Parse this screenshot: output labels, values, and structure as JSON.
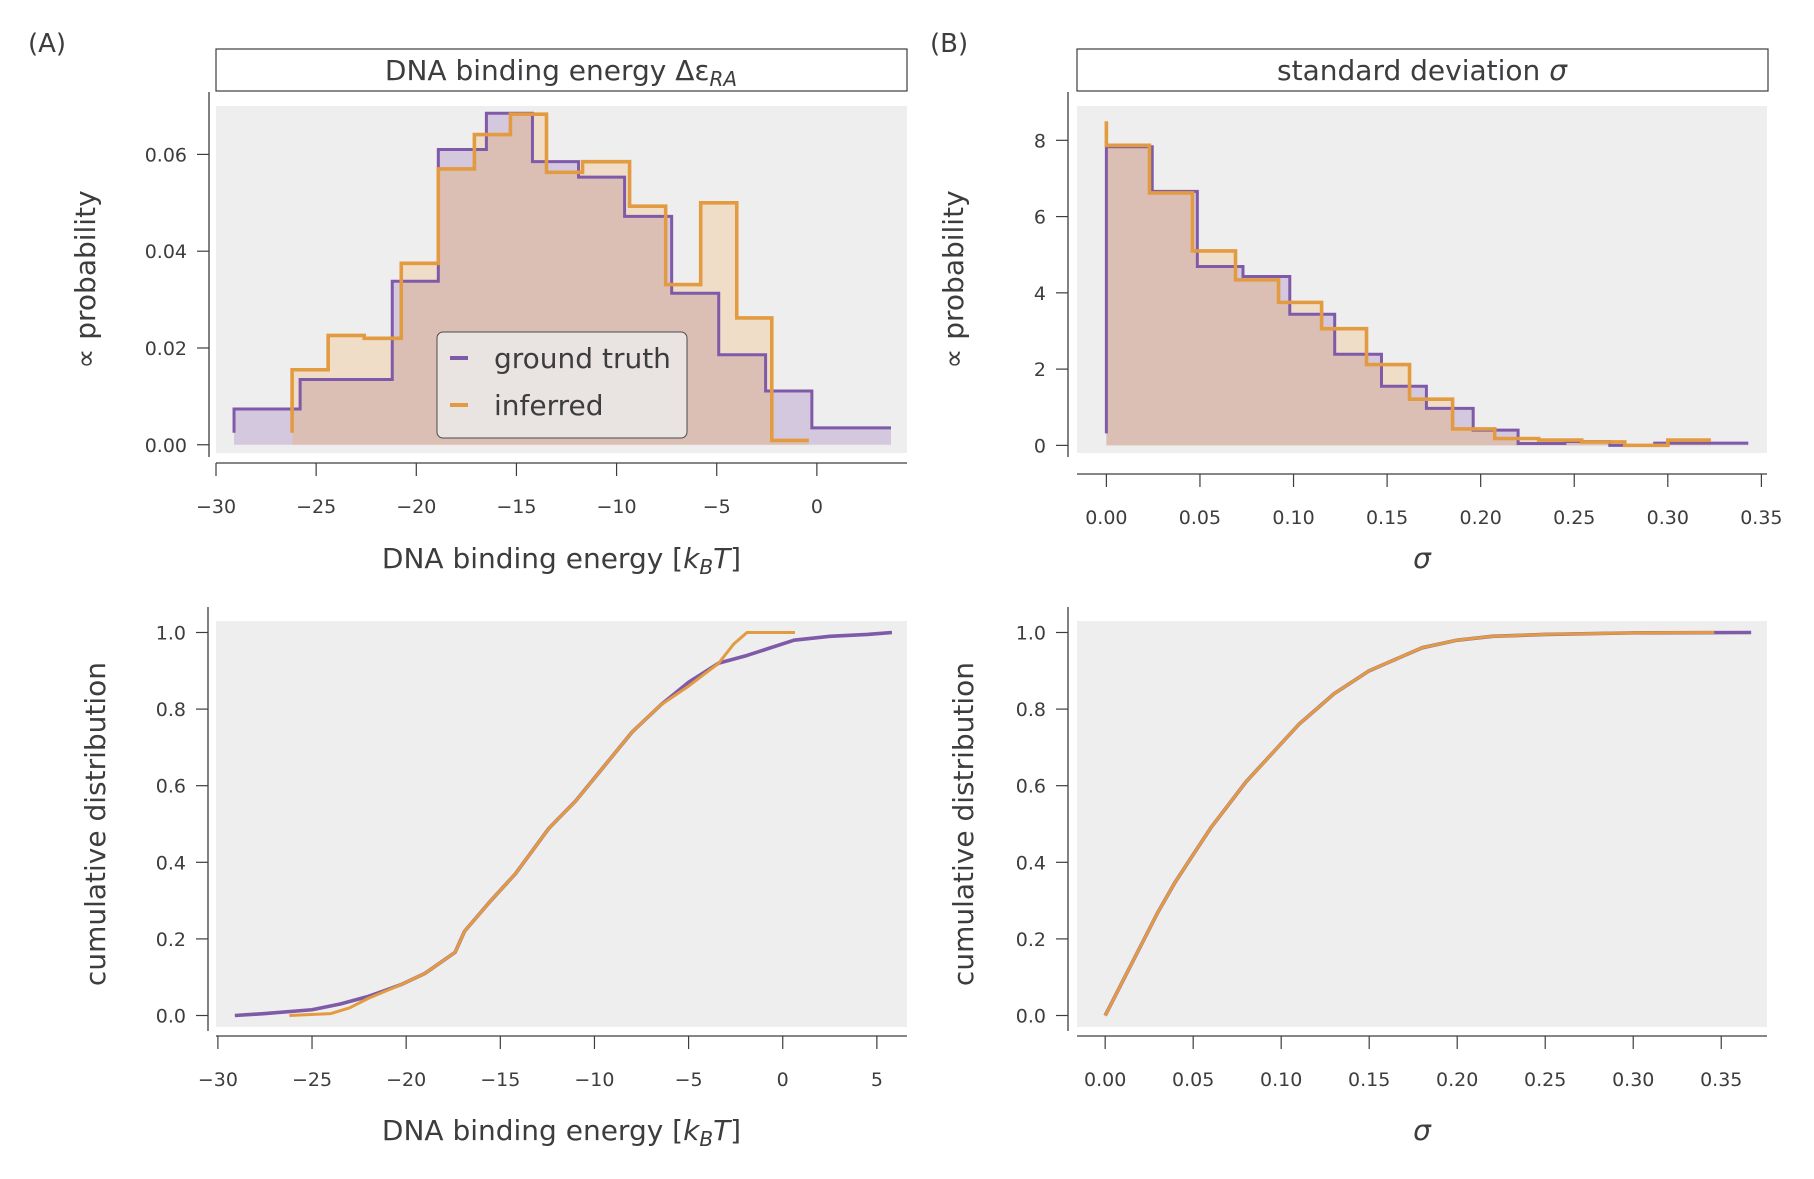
{
  "panels": {
    "A": {
      "label": "(A)",
      "title_main": "DNA binding energy Δε",
      "title_sub": "RA"
    },
    "B": {
      "label": "(B)",
      "title_main": "standard deviation ",
      "title_italic": "σ"
    }
  },
  "legend": {
    "entries": [
      {
        "label": "ground truth",
        "color": "#7f5aa8"
      },
      {
        "label": "inferred",
        "color": "#e39b42"
      }
    ]
  },
  "colors": {
    "ground_truth": "#7f5aa8",
    "inferred": "#e39b42",
    "ground_truth_fill": "#cfc1dc",
    "inferred_fill": "#efd9c1",
    "overlap_fill": "#dbbfb5",
    "plot_bg": "#eeeeee",
    "axis": "#3d3d3f"
  },
  "chart_data": [
    {
      "id": "hist-energy",
      "type": "histogram",
      "title": "DNA binding energy Δε_RA",
      "xlabel": "DNA binding energy [k_B T]",
      "ylabel": "∝ probability",
      "xlim": [
        -30,
        4.5
      ],
      "ylim": [
        -0.0017,
        0.07
      ],
      "xticks": [
        -30,
        -25,
        -20,
        -15,
        -10,
        -5,
        0
      ],
      "xtick_labels": [
        "−30",
        "−25",
        "−20",
        "−15",
        "−10",
        "−5",
        "0"
      ],
      "yticks": [
        0.0,
        0.02,
        0.04,
        0.06
      ],
      "ytick_labels": [
        "0.00",
        "0.02",
        "0.04",
        "0.06"
      ],
      "legend_position": "lower-center",
      "series": [
        {
          "name": "ground truth",
          "edges": [
            -29.1,
            -25.8,
            -21.2,
            -18.9,
            -16.5,
            -14.2,
            -11.9,
            -9.6,
            -7.25,
            -4.9,
            -2.56,
            -0.25,
            3.7
          ],
          "values": [
            0.0074,
            0.0135,
            0.0338,
            0.061,
            0.0685,
            0.0585,
            0.0553,
            0.0472,
            0.0313,
            0.0186,
            0.0111,
            0.0035
          ]
        },
        {
          "name": "inferred",
          "edges": [
            -26.2,
            -24.4,
            -22.6,
            -20.75,
            -18.9,
            -17.1,
            -15.3,
            -13.5,
            -11.7,
            -9.35,
            -7.55,
            -5.8,
            -4.0,
            -2.25,
            -0.4
          ],
          "values": [
            0.0155,
            0.0226,
            0.022,
            0.0375,
            0.057,
            0.0641,
            0.0683,
            0.0563,
            0.0585,
            0.0493,
            0.0331,
            0.05,
            0.0262,
            0.0009
          ]
        }
      ]
    },
    {
      "id": "hist-sigma",
      "type": "histogram",
      "title": "standard deviation σ",
      "xlabel": "σ",
      "ylabel": "∝ probability",
      "xlim": [
        -0.0157,
        0.353
      ],
      "ylim": [
        -0.2,
        8.9
      ],
      "xticks": [
        0.0,
        0.05,
        0.1,
        0.15,
        0.2,
        0.25,
        0.3,
        0.35
      ],
      "xtick_labels": [
        "0.00",
        "0.05",
        "0.10",
        "0.15",
        "0.20",
        "0.25",
        "0.30",
        "0.35"
      ],
      "yticks": [
        0,
        2,
        4,
        6,
        8
      ],
      "ytick_labels": [
        "0",
        "2",
        "4",
        "6",
        "8"
      ],
      "series": [
        {
          "name": "ground truth",
          "edges": [
            0.0,
            0.0245,
            0.0486,
            0.073,
            0.098,
            0.122,
            0.147,
            0.171,
            0.196,
            0.22,
            0.245,
            0.269,
            0.293,
            0.343
          ],
          "values": [
            7.83,
            6.66,
            4.69,
            4.43,
            3.44,
            2.39,
            1.55,
            0.97,
            0.4,
            0.05,
            0.1,
            0.0,
            0.06
          ]
        },
        {
          "name": "inferred",
          "edges": [
            0.0,
            0.023,
            0.046,
            0.069,
            0.092,
            0.115,
            0.139,
            0.162,
            0.185,
            0.2075,
            0.231,
            0.254,
            0.277,
            0.3,
            0.323
          ],
          "values": [
            7.87,
            6.62,
            5.1,
            4.34,
            3.75,
            3.06,
            2.12,
            1.21,
            0.43,
            0.18,
            0.14,
            0.09,
            0.0,
            0.14
          ],
          "spike": 8.5
        }
      ]
    },
    {
      "id": "cdf-energy",
      "type": "line",
      "xlabel": "DNA binding energy [k_B T]",
      "ylabel": "cumulative distribution",
      "xlim": [
        -30.1,
        6.6
      ],
      "ylim": [
        -0.03,
        1.03
      ],
      "xticks": [
        -30,
        -25,
        -20,
        -15,
        -10,
        -5,
        0,
        5
      ],
      "xtick_labels": [
        "−30",
        "−25",
        "−20",
        "−15",
        "−10",
        "−5",
        "0",
        "5"
      ],
      "yticks": [
        0.0,
        0.2,
        0.4,
        0.6,
        0.8,
        1.0
      ],
      "ytick_labels": [
        "0.0",
        "0.2",
        "0.4",
        "0.6",
        "0.8",
        "1.0"
      ],
      "series": [
        {
          "name": "ground truth",
          "x": [
            -29.1,
            -27.5,
            -25,
            -23.5,
            -22,
            -20.3,
            -19,
            -17.4,
            -16.9,
            -15.5,
            -14.2,
            -12.4,
            -11,
            -9.5,
            -8,
            -6.5,
            -5,
            -3.4,
            -1.9,
            0.6,
            2.5,
            4.5,
            5.8
          ],
          "y": [
            0.0,
            0.005,
            0.015,
            0.03,
            0.05,
            0.08,
            0.11,
            0.165,
            0.22,
            0.3,
            0.37,
            0.49,
            0.56,
            0.65,
            0.74,
            0.81,
            0.87,
            0.92,
            0.94,
            0.98,
            0.99,
            0.995,
            1.0
          ]
        },
        {
          "name": "inferred",
          "x": [
            -26.2,
            -24,
            -23,
            -22,
            -20.3,
            -19,
            -17.4,
            -16.9,
            -15.5,
            -14.2,
            -12.4,
            -11,
            -9.5,
            -8,
            -6.5,
            -5,
            -3.4,
            -2.6,
            -1.9,
            0.65
          ],
          "y": [
            0.0,
            0.005,
            0.02,
            0.045,
            0.08,
            0.11,
            0.165,
            0.22,
            0.3,
            0.37,
            0.49,
            0.56,
            0.65,
            0.74,
            0.81,
            0.86,
            0.92,
            0.97,
            1.0,
            1.0
          ]
        }
      ]
    },
    {
      "id": "cdf-sigma",
      "type": "line",
      "xlabel": "σ",
      "ylabel": "cumulative distribution",
      "xlim": [
        -0.016,
        0.376
      ],
      "ylim": [
        -0.03,
        1.03
      ],
      "xticks": [
        0.0,
        0.05,
        0.1,
        0.15,
        0.2,
        0.25,
        0.3,
        0.35
      ],
      "xtick_labels": [
        "0.00",
        "0.05",
        "0.10",
        "0.15",
        "0.20",
        "0.25",
        "0.30",
        "0.35"
      ],
      "yticks": [
        0.0,
        0.2,
        0.4,
        0.6,
        0.8,
        1.0
      ],
      "ytick_labels": [
        "0.0",
        "0.2",
        "0.4",
        "0.6",
        "0.8",
        "1.0"
      ],
      "series": [
        {
          "name": "ground truth",
          "x": [
            0.0,
            0.01,
            0.02,
            0.03,
            0.04,
            0.05,
            0.06,
            0.07,
            0.08,
            0.09,
            0.1,
            0.11,
            0.12,
            0.13,
            0.14,
            0.15,
            0.16,
            0.18,
            0.2,
            0.22,
            0.25,
            0.3,
            0.367
          ],
          "y": [
            0.0,
            0.09,
            0.18,
            0.27,
            0.35,
            0.42,
            0.49,
            0.55,
            0.61,
            0.66,
            0.71,
            0.76,
            0.8,
            0.84,
            0.87,
            0.9,
            0.92,
            0.96,
            0.98,
            0.99,
            0.995,
            0.999,
            1.0
          ]
        },
        {
          "name": "inferred",
          "x": [
            0.0,
            0.01,
            0.02,
            0.03,
            0.04,
            0.05,
            0.06,
            0.07,
            0.08,
            0.09,
            0.1,
            0.11,
            0.12,
            0.13,
            0.14,
            0.15,
            0.16,
            0.18,
            0.2,
            0.22,
            0.25,
            0.3,
            0.346
          ],
          "y": [
            0.0,
            0.09,
            0.18,
            0.27,
            0.35,
            0.42,
            0.49,
            0.55,
            0.61,
            0.66,
            0.71,
            0.76,
            0.8,
            0.84,
            0.87,
            0.9,
            0.92,
            0.96,
            0.98,
            0.99,
            0.995,
            0.999,
            1.0
          ]
        }
      ]
    }
  ]
}
